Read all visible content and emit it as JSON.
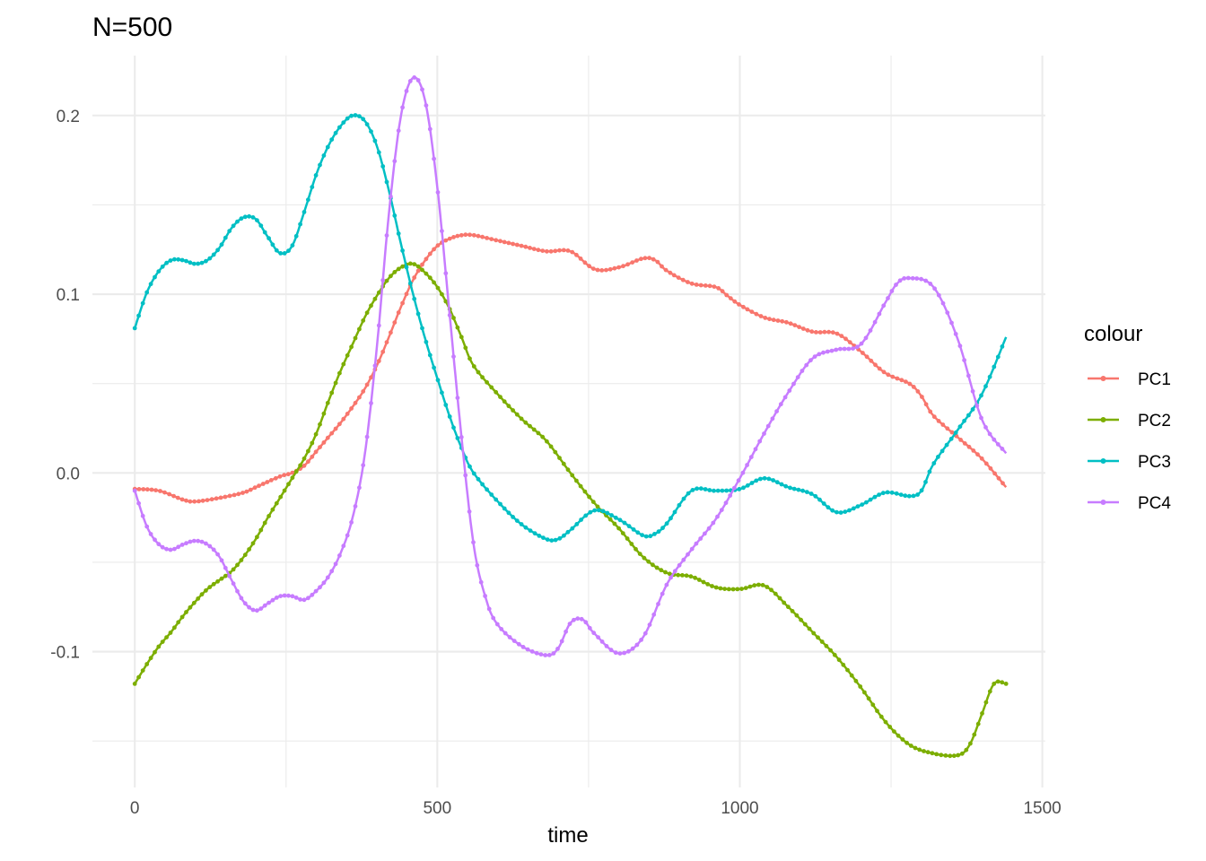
{
  "chart_data": {
    "type": "line",
    "title": "N=500",
    "xlabel": "time",
    "ylabel": "",
    "xlim": [
      -70,
      1505
    ],
    "ylim": [
      -0.176,
      0.2335
    ],
    "x_ticks": [
      0,
      500,
      1000,
      1500
    ],
    "x_tick_labels": [
      "0",
      "500",
      "1000",
      "1500"
    ],
    "y_ticks": [
      -0.1,
      0.0,
      0.1,
      0.2
    ],
    "y_tick_labels": [
      "-0.1",
      "0.0",
      "0.1",
      "0.2"
    ],
    "grid": true,
    "legend": {
      "title": "colour",
      "position": "right"
    },
    "markers": "small points along each line",
    "series": [
      {
        "name": "PC1",
        "color": "#F8766D",
        "x": [
          0,
          40,
          80,
          100,
          140,
          180,
          200,
          240,
          260,
          280,
          300,
          320,
          340,
          360,
          380,
          400,
          420,
          440,
          460,
          480,
          500,
          520,
          540,
          560,
          600,
          640,
          680,
          720,
          760,
          800,
          840,
          860,
          880,
          920,
          960,
          980,
          1000,
          1040,
          1080,
          1120,
          1160,
          1200,
          1240,
          1280,
          1300,
          1320,
          1360,
          1400,
          1440
        ],
        "y": [
          -0.009,
          -0.01,
          -0.015,
          -0.016,
          -0.014,
          -0.011,
          -0.008,
          -0.002,
          0.0,
          0.004,
          0.012,
          0.02,
          0.028,
          0.037,
          0.047,
          0.06,
          0.076,
          0.093,
          0.108,
          0.119,
          0.127,
          0.131,
          0.133,
          0.133,
          0.13,
          0.127,
          0.124,
          0.124,
          0.114,
          0.115,
          0.12,
          0.119,
          0.113,
          0.106,
          0.104,
          0.099,
          0.094,
          0.087,
          0.084,
          0.079,
          0.078,
          0.068,
          0.056,
          0.05,
          0.043,
          0.032,
          0.02,
          0.008,
          -0.008
        ]
      },
      {
        "name": "PC2",
        "color": "#7CAE00",
        "x": [
          0,
          20,
          40,
          60,
          80,
          100,
          120,
          140,
          160,
          180,
          200,
          220,
          240,
          260,
          280,
          300,
          320,
          340,
          360,
          380,
          400,
          420,
          440,
          460,
          480,
          500,
          520,
          540,
          560,
          600,
          640,
          680,
          720,
          760,
          800,
          840,
          880,
          920,
          960,
          1000,
          1040,
          1080,
          1120,
          1160,
          1200,
          1240,
          1280,
          1320,
          1360,
          1380,
          1400,
          1420,
          1440
        ],
        "y": [
          -0.118,
          -0.107,
          -0.097,
          -0.089,
          -0.08,
          -0.072,
          -0.065,
          -0.06,
          -0.055,
          -0.047,
          -0.037,
          -0.025,
          -0.014,
          -0.003,
          0.008,
          0.022,
          0.04,
          0.057,
          0.072,
          0.087,
          0.099,
          0.109,
          0.115,
          0.117,
          0.112,
          0.104,
          0.092,
          0.076,
          0.06,
          0.044,
          0.03,
          0.018,
          0.0,
          -0.017,
          -0.031,
          -0.047,
          -0.056,
          -0.058,
          -0.064,
          -0.065,
          -0.063,
          -0.075,
          -0.089,
          -0.103,
          -0.12,
          -0.139,
          -0.152,
          -0.157,
          -0.158,
          -0.152,
          -0.135,
          -0.118,
          -0.118
        ]
      },
      {
        "name": "PC3",
        "color": "#00BFC4",
        "x": [
          0,
          20,
          40,
          60,
          80,
          100,
          120,
          140,
          160,
          180,
          200,
          220,
          240,
          260,
          280,
          300,
          320,
          340,
          360,
          380,
          400,
          420,
          440,
          460,
          480,
          500,
          520,
          540,
          560,
          600,
          640,
          680,
          700,
          720,
          760,
          800,
          840,
          860,
          880,
          920,
          960,
          1000,
          1040,
          1080,
          1120,
          1160,
          1200,
          1240,
          1280,
          1300,
          1320,
          1360,
          1400,
          1440
        ],
        "y": [
          0.081,
          0.101,
          0.113,
          0.119,
          0.119,
          0.117,
          0.119,
          0.126,
          0.137,
          0.143,
          0.142,
          0.132,
          0.123,
          0.127,
          0.146,
          0.167,
          0.183,
          0.194,
          0.2,
          0.197,
          0.183,
          0.158,
          0.128,
          0.1,
          0.075,
          0.053,
          0.032,
          0.014,
          0.0,
          -0.016,
          -0.029,
          -0.037,
          -0.037,
          -0.032,
          -0.021,
          -0.026,
          -0.035,
          -0.034,
          -0.028,
          -0.01,
          -0.01,
          -0.009,
          -0.003,
          -0.008,
          -0.012,
          -0.022,
          -0.018,
          -0.011,
          -0.013,
          -0.01,
          0.005,
          0.024,
          0.044,
          0.076
        ]
      },
      {
        "name": "PC4",
        "color": "#C77CFF",
        "x": [
          0,
          20,
          40,
          60,
          80,
          100,
          120,
          140,
          160,
          180,
          200,
          220,
          240,
          260,
          280,
          300,
          320,
          340,
          360,
          380,
          400,
          420,
          440,
          460,
          480,
          500,
          520,
          540,
          560,
          580,
          600,
          640,
          680,
          700,
          720,
          740,
          760,
          800,
          840,
          880,
          920,
          960,
          1000,
          1040,
          1080,
          1120,
          1160,
          1200,
          1240,
          1260,
          1280,
          1320,
          1360,
          1400,
          1440
        ],
        "y": [
          -0.01,
          -0.03,
          -0.04,
          -0.043,
          -0.04,
          -0.038,
          -0.04,
          -0.047,
          -0.06,
          -0.072,
          -0.077,
          -0.073,
          -0.069,
          -0.069,
          -0.071,
          -0.066,
          -0.058,
          -0.045,
          -0.025,
          0.01,
          0.07,
          0.145,
          0.2,
          0.221,
          0.208,
          0.16,
          0.09,
          0.02,
          -0.04,
          -0.07,
          -0.085,
          -0.097,
          -0.102,
          -0.098,
          -0.084,
          -0.082,
          -0.09,
          -0.101,
          -0.092,
          -0.062,
          -0.043,
          -0.026,
          -0.003,
          0.022,
          0.045,
          0.064,
          0.069,
          0.072,
          0.095,
          0.106,
          0.109,
          0.104,
          0.075,
          0.03,
          0.011
        ]
      }
    ]
  }
}
